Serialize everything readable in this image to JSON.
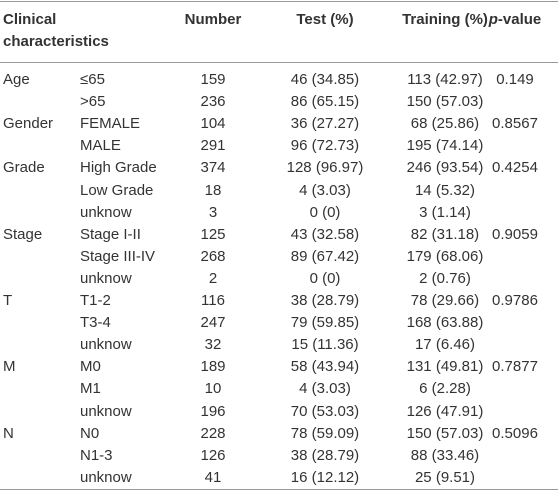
{
  "header": {
    "characteristics": "Clinical characteristics",
    "number": "Number",
    "test": "Test (%)",
    "training": "Training (%)",
    "p_value": {
      "italic": "p",
      "text": "-value"
    }
  },
  "groups": [
    {
      "name": "Age",
      "p_value": "0.149",
      "rows": [
        [
          "≤65",
          "159",
          "46 (34.85)",
          "113 (42.97)"
        ],
        [
          ">65",
          "236",
          "86 (65.15)",
          "150 (57.03)"
        ]
      ]
    },
    {
      "name": "Gender",
      "p_value": "0.8567",
      "rows": [
        [
          "FEMALE",
          "104",
          "36 (27.27)",
          "68 (25.86)"
        ],
        [
          "MALE",
          "291",
          "96 (72.73)",
          "195 (74.14)"
        ]
      ]
    },
    {
      "name": "Grade",
      "p_value": "0.4254",
      "rows": [
        [
          "High Grade",
          "374",
          "128 (96.97)",
          "246 (93.54)"
        ],
        [
          "Low Grade",
          "18",
          "4 (3.03)",
          "14 (5.32)"
        ],
        [
          "unknow",
          "3",
          "0 (0)",
          "3 (1.14)"
        ]
      ]
    },
    {
      "name": "Stage",
      "p_value": "0.9059",
      "rows": [
        [
          "Stage I-II",
          "125",
          "43 (32.58)",
          "82 (31.18)"
        ],
        [
          "Stage III-IV",
          "268",
          "89 (67.42)",
          "179 (68.06)"
        ],
        [
          "unknow",
          "2",
          "0 (0)",
          "2 (0.76)"
        ]
      ]
    },
    {
      "name": "T",
      "p_value": "0.9786",
      "rows": [
        [
          "T1-2",
          "116",
          "38 (28.79)",
          "78 (29.66)"
        ],
        [
          "T3-4",
          "247",
          "79 (59.85)",
          "168 (63.88)"
        ],
        [
          "unknow",
          "32",
          "15 (11.36)",
          "17 (6.46)"
        ]
      ]
    },
    {
      "name": "M",
      "p_value": "0.7877",
      "rows": [
        [
          "M0",
          "189",
          "58 (43.94)",
          "131 (49.81)"
        ],
        [
          "M1",
          "10",
          "4 (3.03)",
          "6 (2.28)"
        ],
        [
          "unknow",
          "196",
          "70 (53.03)",
          "126 (47.91)"
        ]
      ]
    },
    {
      "name": "N",
      "p_value": "0.5096",
      "rows": [
        [
          "N0",
          "228",
          "78 (59.09)",
          "150 (57.03)"
        ],
        [
          "N1-3",
          "126",
          "38 (28.79)",
          "88 (33.46)"
        ],
        [
          "unknow",
          "41",
          "16 (12.12)",
          "25 (9.51)"
        ]
      ]
    }
  ]
}
